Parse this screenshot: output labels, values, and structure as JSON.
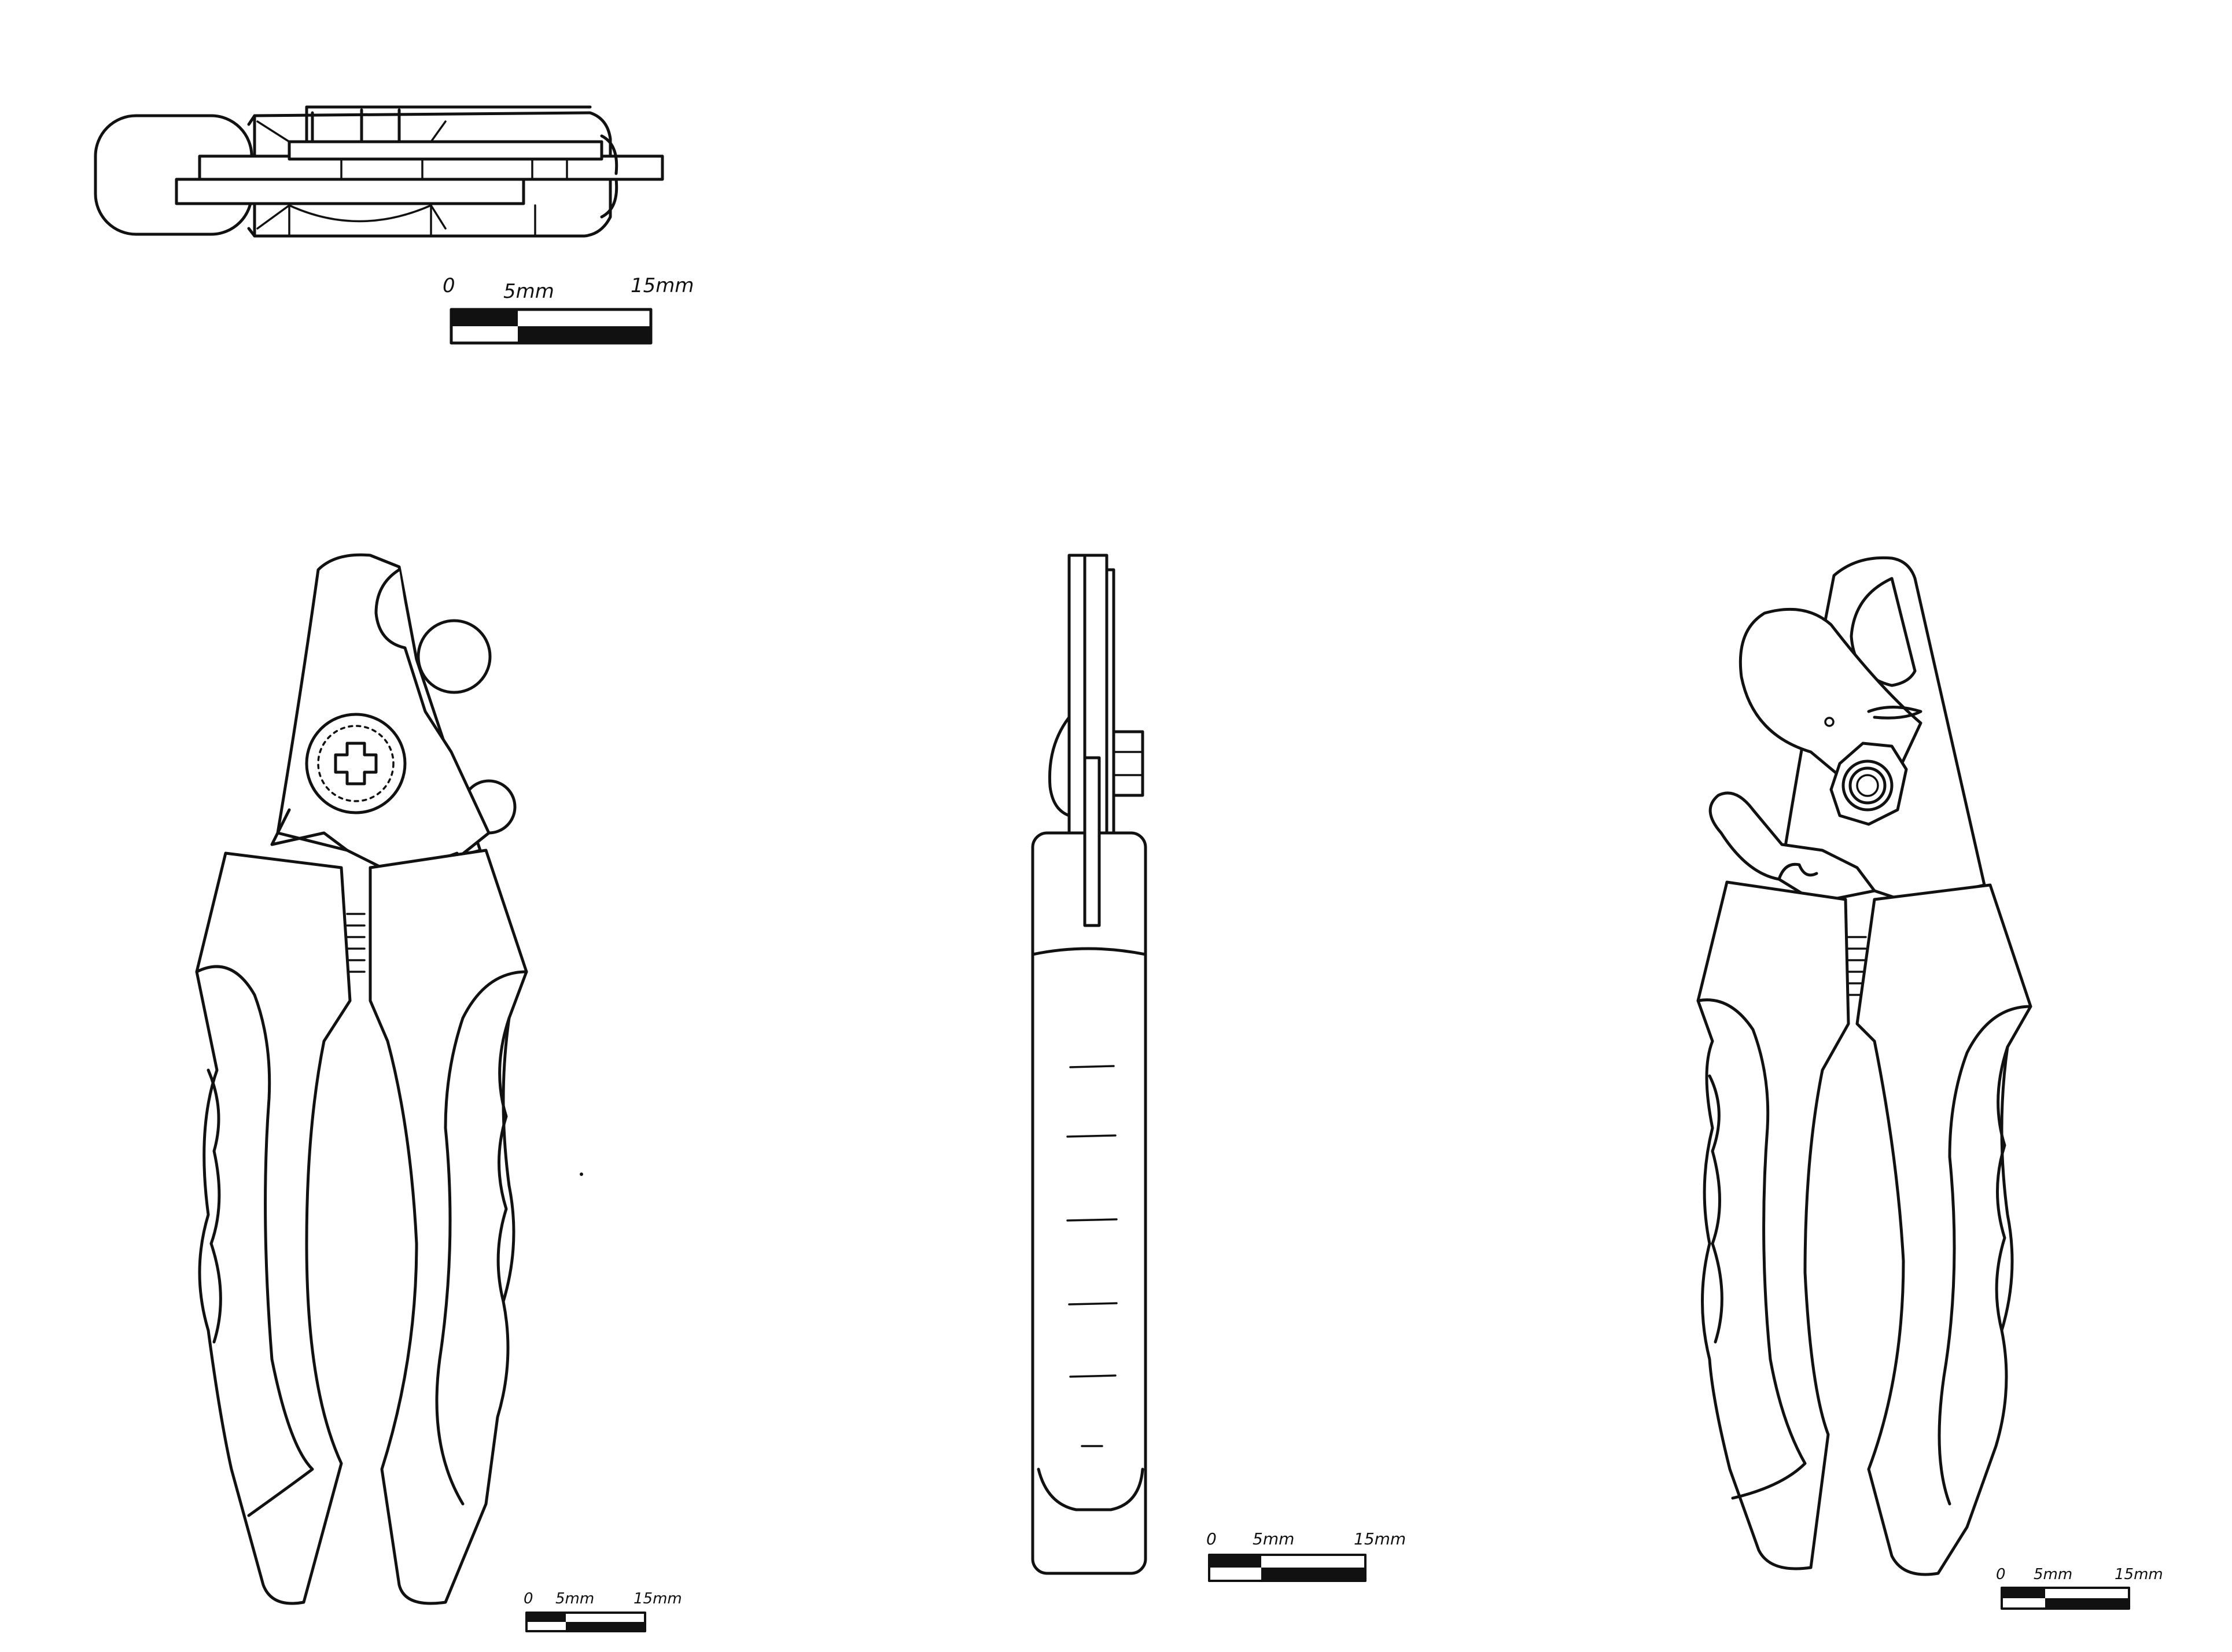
{
  "scale_bars": [
    {
      "id": "top",
      "label_zero": "0",
      "label_mid": "5mm",
      "label_end": "15mm"
    },
    {
      "id": "front",
      "label_zero": "0",
      "label_mid": "5mm",
      "label_end": "15mm"
    },
    {
      "id": "side",
      "label_zero": "0",
      "label_mid": "5mm",
      "label_end": "15mm"
    },
    {
      "id": "back",
      "label_zero": "0",
      "label_mid": "5mm",
      "label_end": "15mm"
    }
  ],
  "colors": {
    "line": "#111111",
    "background": "#ffffff"
  }
}
